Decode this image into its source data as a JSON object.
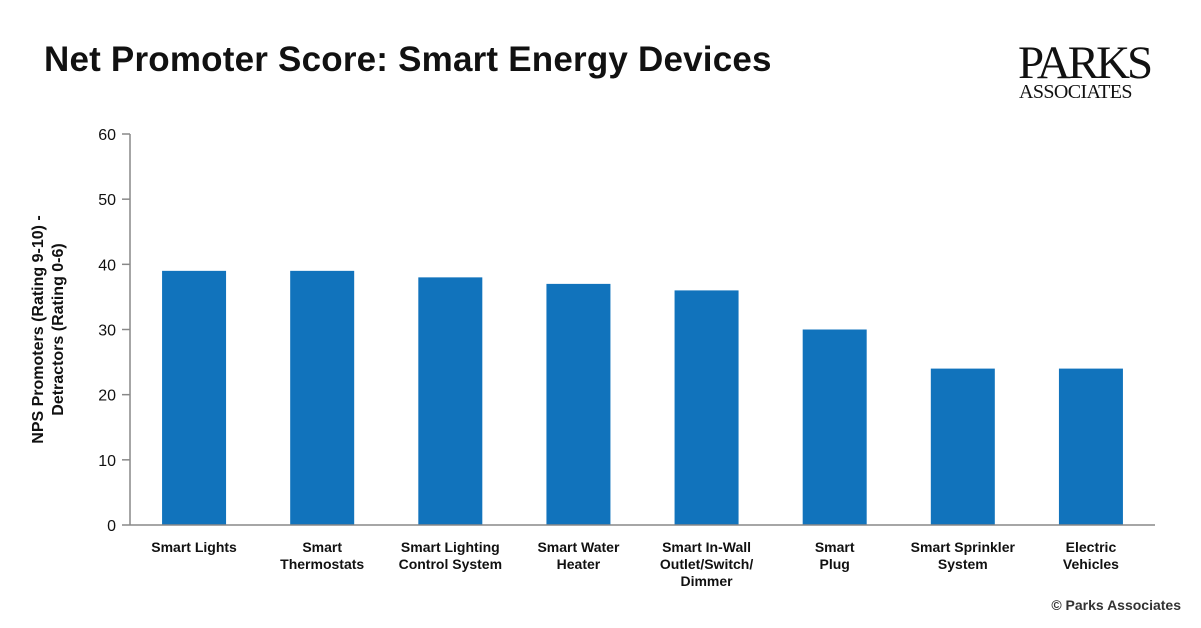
{
  "chart_data": {
    "type": "bar",
    "title": "Net Promoter Score: Smart Energy Devices",
    "ylabel": [
      "NPS Promoters (Rating 9-10) -",
      "Detractors (Rating 0-6)"
    ],
    "xlabel": "",
    "ylim": [
      0,
      60
    ],
    "yticks": [
      0,
      10,
      20,
      30,
      40,
      50,
      60
    ],
    "categories": [
      [
        "Smart Lights"
      ],
      [
        "Smart",
        "Thermostats"
      ],
      [
        "Smart Lighting",
        "Control System"
      ],
      [
        "Smart Water",
        "Heater"
      ],
      [
        "Smart In-Wall",
        "Outlet/Switch/",
        "Dimmer"
      ],
      [
        "Smart",
        "Plug"
      ],
      [
        "Smart Sprinkler",
        "System"
      ],
      [
        "Electric",
        "Vehicles"
      ]
    ],
    "values": [
      39,
      39,
      38,
      37,
      36,
      30,
      24,
      24
    ],
    "bar_color": "#1173bc",
    "grid": false,
    "legend": "none"
  },
  "logo": {
    "line1": "PARKS",
    "line2": "ASSOCIATES"
  },
  "copyright": "© Parks Associates"
}
